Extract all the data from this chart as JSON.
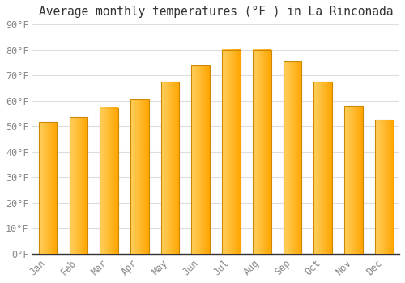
{
  "title": "Average monthly temperatures (°F ) in La Rinconada",
  "months": [
    "Jan",
    "Feb",
    "Mar",
    "Apr",
    "May",
    "Jun",
    "Jul",
    "Aug",
    "Sep",
    "Oct",
    "Nov",
    "Dec"
  ],
  "values": [
    51.5,
    53.5,
    57.5,
    60.5,
    67.5,
    74.0,
    80.0,
    80.0,
    75.5,
    67.5,
    58.0,
    52.5
  ],
  "bar_color_left": "#FFD060",
  "bar_color_right": "#FFA500",
  "bar_edge_color": "#CC8800",
  "ylim": [
    0,
    90
  ],
  "yticks": [
    0,
    10,
    20,
    30,
    40,
    50,
    60,
    70,
    80,
    90
  ],
  "ytick_labels": [
    "0°F",
    "10°F",
    "20°F",
    "30°F",
    "40°F",
    "50°F",
    "60°F",
    "70°F",
    "80°F",
    "90°F"
  ],
  "background_color": "#FFFFFF",
  "grid_color": "#DDDDDD",
  "title_fontsize": 10.5,
  "tick_fontsize": 8.5,
  "bar_width": 0.6
}
